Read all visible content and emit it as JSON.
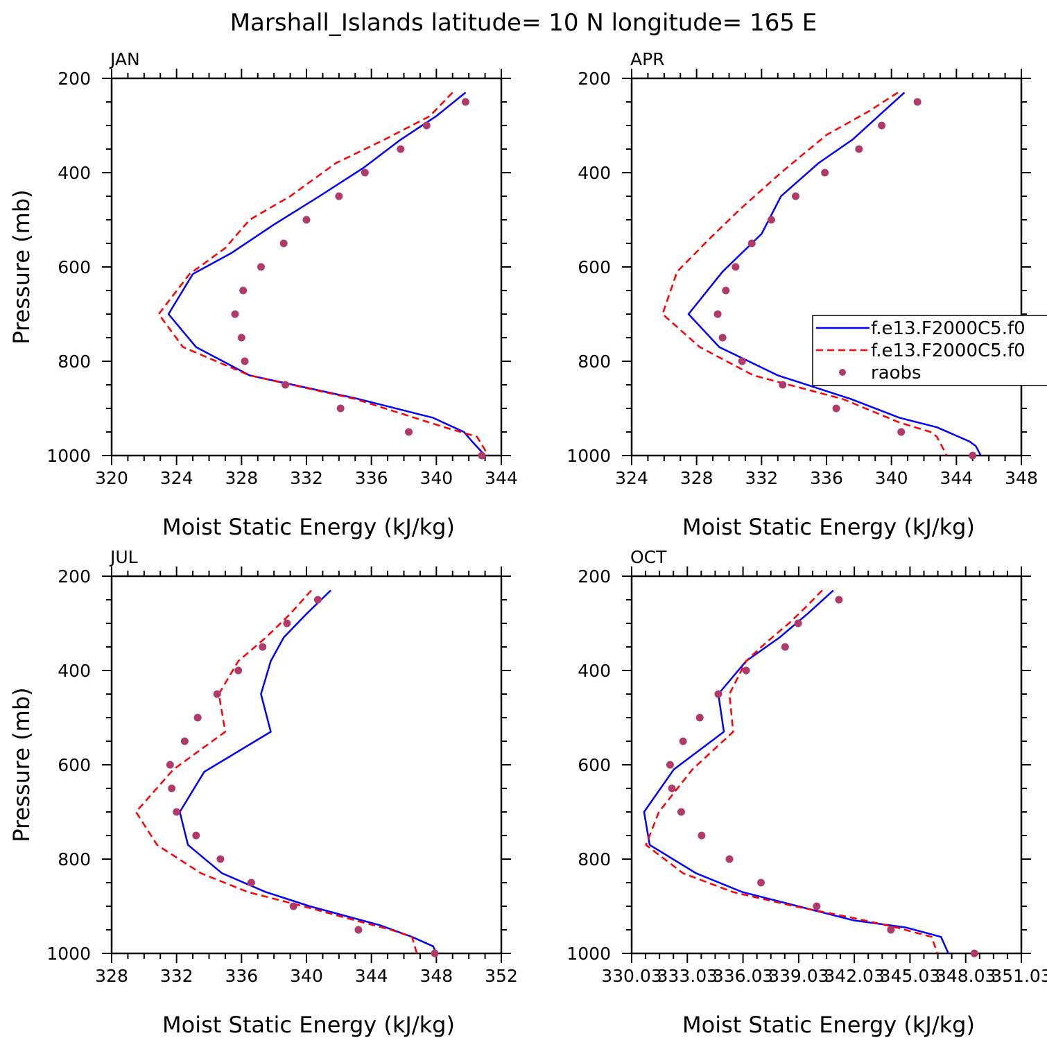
{
  "title": "Marshall_Islands  latitude= 10 N longitude= 165 E",
  "colors": {
    "model1": "#0000ff",
    "model2": "#ff0000",
    "raobs": "#b03a6a",
    "axis": "#000000"
  },
  "legend": {
    "placement": "right-middle of APR panel",
    "entries": [
      {
        "label": "f.e13.F2000C5.f0",
        "style": "solid",
        "color": "#0000ff"
      },
      {
        "label": "f.e13.F2000C5.f0",
        "style": "dashed",
        "color": "#ff0000"
      },
      {
        "label": "raobs",
        "style": "dot",
        "color": "#b03a6a"
      }
    ]
  },
  "chart_data": [
    {
      "type": "line",
      "panel": "JAN",
      "xlabel": "Moist Static Energy (kJ/kg)",
      "ylabel": "Pressure (mb)",
      "xlim": [
        320,
        344
      ],
      "ylim": [
        1000,
        200
      ],
      "y_inverted": true,
      "xticks": [
        "320",
        "324",
        "328",
        "332",
        "336",
        "340",
        "344"
      ],
      "yticks": [
        "200",
        "400",
        "600",
        "800",
        "1000"
      ],
      "series": [
        {
          "style": "solid",
          "points": [
            [
              341.8,
              230
            ],
            [
              340.0,
              280
            ],
            [
              337.8,
              330
            ],
            [
              335.5,
              390
            ],
            [
              332.8,
              450
            ],
            [
              330.0,
              510
            ],
            [
              327.4,
              570
            ],
            [
              325.0,
              615
            ],
            [
              323.5,
              700
            ],
            [
              325.2,
              770
            ],
            [
              328.5,
              830
            ],
            [
              335.2,
              880
            ],
            [
              339.8,
              920
            ],
            [
              341.7,
              950
            ],
            [
              342.2,
              970
            ],
            [
              343.0,
              1000
            ]
          ]
        },
        {
          "style": "dashed",
          "points": [
            [
              341.0,
              230
            ],
            [
              339.6,
              280
            ],
            [
              336.8,
              330
            ],
            [
              333.8,
              380
            ],
            [
              331.0,
              450
            ],
            [
              328.5,
              500
            ],
            [
              327.0,
              560
            ],
            [
              324.8,
              615
            ],
            [
              322.9,
              700
            ],
            [
              324.4,
              770
            ],
            [
              328.5,
              830
            ],
            [
              335.0,
              880
            ],
            [
              340.5,
              940
            ],
            [
              342.5,
              960
            ],
            [
              343.2,
              1000
            ]
          ]
        },
        {
          "style": "dot",
          "points": [
            [
              341.8,
              250
            ],
            [
              339.4,
              300
            ],
            [
              337.8,
              350
            ],
            [
              335.6,
              400
            ],
            [
              334.0,
              450
            ],
            [
              332.0,
              500
            ],
            [
              330.6,
              550
            ],
            [
              329.2,
              600
            ],
            [
              328.1,
              650
            ],
            [
              327.6,
              700
            ],
            [
              328.0,
              750
            ],
            [
              328.2,
              800
            ],
            [
              330.7,
              850
            ],
            [
              334.1,
              900
            ],
            [
              338.3,
              950
            ],
            [
              342.8,
              1000
            ]
          ]
        }
      ]
    },
    {
      "type": "line",
      "panel": "APR",
      "xlabel": "Moist Static Energy (kJ/kg)",
      "ylabel": "",
      "xlim": [
        324,
        348
      ],
      "ylim": [
        1000,
        200
      ],
      "y_inverted": true,
      "xticks": [
        "324",
        "328",
        "332",
        "336",
        "340",
        "344",
        "348"
      ],
      "yticks": [
        "200",
        "400",
        "600",
        "800",
        "1000"
      ],
      "series": [
        {
          "style": "solid",
          "points": [
            [
              340.8,
              230
            ],
            [
              339.2,
              280
            ],
            [
              337.6,
              330
            ],
            [
              335.5,
              380
            ],
            [
              333.2,
              450
            ],
            [
              332.0,
              530
            ],
            [
              329.6,
              610
            ],
            [
              327.5,
              700
            ],
            [
              329.4,
              770
            ],
            [
              333.0,
              830
            ],
            [
              337.5,
              880
            ],
            [
              340.5,
              920
            ],
            [
              342.8,
              940
            ],
            [
              344.8,
              970
            ],
            [
              345.2,
              980
            ],
            [
              345.5,
              1000
            ]
          ]
        },
        {
          "style": "dashed",
          "points": [
            [
              340.4,
              230
            ],
            [
              338.6,
              270
            ],
            [
              336.0,
              320
            ],
            [
              333.2,
              400
            ],
            [
              330.6,
              480
            ],
            [
              328.8,
              540
            ],
            [
              326.8,
              610
            ],
            [
              325.9,
              700
            ],
            [
              328.2,
              770
            ],
            [
              331.5,
              830
            ],
            [
              337.0,
              880
            ],
            [
              340.5,
              930
            ],
            [
              342.4,
              950
            ],
            [
              342.8,
              960
            ],
            [
              343.4,
              1000
            ]
          ]
        },
        {
          "style": "dot",
          "points": [
            [
              341.6,
              250
            ],
            [
              339.4,
              300
            ],
            [
              338.0,
              350
            ],
            [
              335.9,
              400
            ],
            [
              334.1,
              450
            ],
            [
              332.6,
              500
            ],
            [
              331.4,
              550
            ],
            [
              330.4,
              600
            ],
            [
              329.8,
              650
            ],
            [
              329.3,
              700
            ],
            [
              329.6,
              750
            ],
            [
              330.8,
              800
            ],
            [
              333.3,
              850
            ],
            [
              336.6,
              900
            ],
            [
              340.6,
              950
            ],
            [
              345.0,
              1000
            ]
          ]
        }
      ]
    },
    {
      "type": "line",
      "panel": "JUL",
      "xlabel": "Moist Static Energy (kJ/kg)",
      "ylabel": "Pressure (mb)",
      "xlim": [
        328,
        352
      ],
      "ylim": [
        1000,
        200
      ],
      "y_inverted": true,
      "xticks": [
        "328",
        "332",
        "336",
        "340",
        "344",
        "348",
        "352"
      ],
      "yticks": [
        "200",
        "400",
        "600",
        "800",
        "1000"
      ],
      "series": [
        {
          "style": "solid",
          "points": [
            [
              341.5,
              230
            ],
            [
              340.0,
              280
            ],
            [
              338.6,
              330
            ],
            [
              337.8,
              380
            ],
            [
              337.2,
              450
            ],
            [
              337.8,
              530
            ],
            [
              333.7,
              615
            ],
            [
              332.2,
              700
            ],
            [
              332.7,
              770
            ],
            [
              334.8,
              830
            ],
            [
              337.5,
              870
            ],
            [
              340.2,
              900
            ],
            [
              344.5,
              940
            ],
            [
              346.5,
              965
            ],
            [
              347.8,
              985
            ],
            [
              348.0,
              1000
            ]
          ]
        },
        {
          "style": "dashed",
          "points": [
            [
              340.3,
              230
            ],
            [
              339.0,
              280
            ],
            [
              337.5,
              330
            ],
            [
              335.8,
              380
            ],
            [
              334.6,
              450
            ],
            [
              335.0,
              530
            ],
            [
              331.8,
              610
            ],
            [
              329.5,
              700
            ],
            [
              330.8,
              770
            ],
            [
              333.5,
              830
            ],
            [
              336.4,
              870
            ],
            [
              339.8,
              900
            ],
            [
              343.0,
              930
            ],
            [
              345.2,
              950
            ],
            [
              346.5,
              965
            ],
            [
              346.8,
              1000
            ]
          ]
        },
        {
          "style": "dot",
          "points": [
            [
              340.7,
              250
            ],
            [
              338.8,
              300
            ],
            [
              337.3,
              350
            ],
            [
              335.8,
              400
            ],
            [
              334.5,
              450
            ],
            [
              333.3,
              500
            ],
            [
              332.5,
              550
            ],
            [
              331.6,
              600
            ],
            [
              331.7,
              650
            ],
            [
              332.0,
              700
            ],
            [
              333.2,
              750
            ],
            [
              334.7,
              800
            ],
            [
              336.6,
              850
            ],
            [
              339.2,
              900
            ],
            [
              343.2,
              950
            ],
            [
              347.9,
              1000
            ]
          ]
        }
      ]
    },
    {
      "type": "line",
      "panel": "OCT",
      "xlabel": "Moist Static Energy (kJ/kg)",
      "ylabel": "",
      "xlim": [
        330.03,
        351.03
      ],
      "ylim": [
        1000,
        200
      ],
      "y_inverted": true,
      "xticks": [
        "330.03",
        "333.03",
        "336.03",
        "339.03",
        "342.03",
        "345.03",
        "348.03",
        "351.03"
      ],
      "yticks": [
        "200",
        "400",
        "600",
        "800",
        "1000"
      ],
      "series": [
        {
          "style": "solid",
          "points": [
            [
              340.9,
              230
            ],
            [
              339.5,
              280
            ],
            [
              338.0,
              330
            ],
            [
              336.2,
              380
            ],
            [
              334.7,
              450
            ],
            [
              335.0,
              530
            ],
            [
              332.3,
              610
            ],
            [
              330.7,
              700
            ],
            [
              331.0,
              770
            ],
            [
              333.5,
              830
            ],
            [
              336.0,
              870
            ],
            [
              339.0,
              900
            ],
            [
              342.0,
              930
            ],
            [
              344.8,
              945
            ],
            [
              346.7,
              965
            ],
            [
              347.1,
              1000
            ]
          ]
        },
        {
          "style": "dashed",
          "points": [
            [
              340.3,
              230
            ],
            [
              339.3,
              270
            ],
            [
              338.5,
              300
            ],
            [
              337.3,
              340
            ],
            [
              336.2,
              380
            ],
            [
              335.3,
              450
            ],
            [
              335.5,
              530
            ],
            [
              333.3,
              610
            ],
            [
              331.5,
              700
            ],
            [
              330.8,
              770
            ],
            [
              332.8,
              830
            ],
            [
              335.5,
              870
            ],
            [
              338.8,
              900
            ],
            [
              342.0,
              925
            ],
            [
              344.3,
              945
            ],
            [
              346.2,
              965
            ],
            [
              346.5,
              1000
            ]
          ]
        },
        {
          "style": "dot",
          "points": [
            [
              341.2,
              250
            ],
            [
              339.0,
              300
            ],
            [
              338.3,
              350
            ],
            [
              336.2,
              400
            ],
            [
              334.7,
              450
            ],
            [
              333.7,
              500
            ],
            [
              332.8,
              550
            ],
            [
              332.1,
              600
            ],
            [
              332.2,
              650
            ],
            [
              332.7,
              700
            ],
            [
              333.8,
              750
            ],
            [
              335.3,
              800
            ],
            [
              337.0,
              850
            ],
            [
              340.0,
              900
            ],
            [
              344.0,
              950
            ],
            [
              348.5,
              1000
            ]
          ]
        }
      ]
    }
  ]
}
